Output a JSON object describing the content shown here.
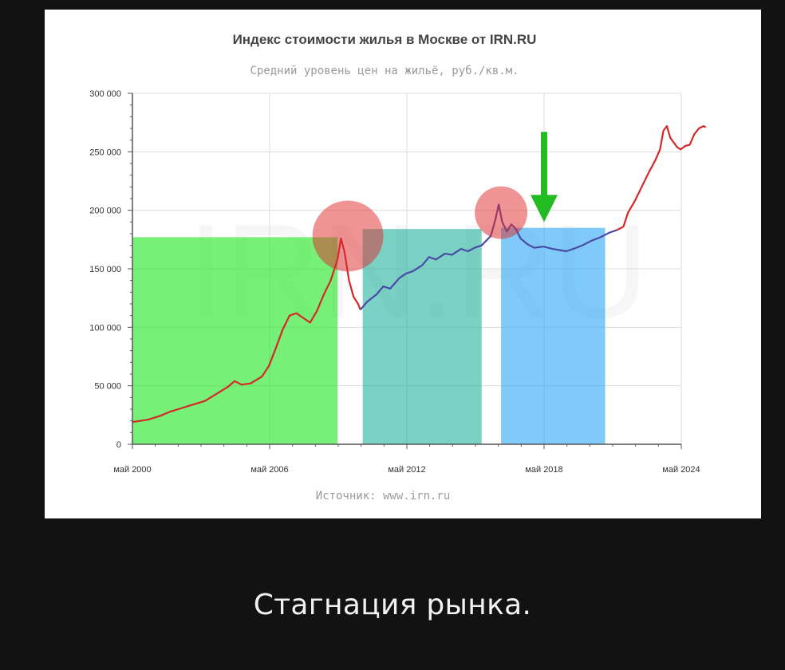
{
  "chart_data": {
    "type": "line",
    "title": "Индекс стоимости жилья в Москве от IRN.RU",
    "subtitle": "Средний уровень цен на жильё, руб./кв.м.",
    "source": "Источник: www.irn.ru",
    "watermark": "IRN.RU",
    "xlim": [
      2000.33,
      2024.33
    ],
    "ylim": [
      0,
      300000
    ],
    "x_ticks": [
      {
        "x": 2000.33,
        "label": "май 2000"
      },
      {
        "x": 2006.33,
        "label": "май 2006"
      },
      {
        "x": 2012.33,
        "label": "май 2012"
      },
      {
        "x": 2018.33,
        "label": "май 2018"
      },
      {
        "x": 2024.33,
        "label": "май 2024"
      }
    ],
    "y_ticks": [
      {
        "y": 0,
        "label": "0"
      },
      {
        "y": 50000,
        "label": "50 000"
      },
      {
        "y": 100000,
        "label": "100 000"
      },
      {
        "y": 150000,
        "label": "150 000"
      },
      {
        "y": 200000,
        "label": "200 000"
      },
      {
        "y": 250000,
        "label": "250 000"
      },
      {
        "y": 300000,
        "label": "300 000"
      }
    ],
    "grid": true,
    "series": [
      {
        "color": "#d62728",
        "points": [
          [
            2000.33,
            19000
          ],
          [
            2001.0,
            21000
          ],
          [
            2001.5,
            24000
          ],
          [
            2002.0,
            28000
          ],
          [
            2002.5,
            31000
          ],
          [
            2003.0,
            34000
          ],
          [
            2003.5,
            37000
          ],
          [
            2004.0,
            43000
          ],
          [
            2004.5,
            49000
          ],
          [
            2004.8,
            54000
          ],
          [
            2005.1,
            51000
          ],
          [
            2005.5,
            52000
          ],
          [
            2006.0,
            58000
          ],
          [
            2006.3,
            67000
          ],
          [
            2006.6,
            82000
          ],
          [
            2006.9,
            98000
          ],
          [
            2007.2,
            110000
          ],
          [
            2007.5,
            112000
          ],
          [
            2007.8,
            108000
          ],
          [
            2008.1,
            104000
          ],
          [
            2008.4,
            114000
          ],
          [
            2008.7,
            128000
          ],
          [
            2009.0,
            140000
          ],
          [
            2009.3,
            158000
          ],
          [
            2009.45,
            176000
          ],
          [
            2009.6,
            165000
          ],
          [
            2009.8,
            140000
          ],
          [
            2010.0,
            126000
          ],
          [
            2010.2,
            120000
          ],
          [
            2010.3,
            115000
          ]
        ]
      },
      {
        "color": "#4a4aa8",
        "points": [
          [
            2010.3,
            115000
          ],
          [
            2010.6,
            122000
          ],
          [
            2011.0,
            128000
          ],
          [
            2011.3,
            135000
          ],
          [
            2011.6,
            133000
          ],
          [
            2012.0,
            142000
          ],
          [
            2012.3,
            146000
          ],
          [
            2012.6,
            148000
          ],
          [
            2013.0,
            153000
          ],
          [
            2013.3,
            160000
          ],
          [
            2013.6,
            158000
          ],
          [
            2014.0,
            163000
          ],
          [
            2014.3,
            162000
          ],
          [
            2014.7,
            167000
          ],
          [
            2015.0,
            165000
          ],
          [
            2015.3,
            168000
          ],
          [
            2015.6,
            170000
          ],
          [
            2016.0,
            178000
          ],
          [
            2016.2,
            192000
          ],
          [
            2016.35,
            205000
          ],
          [
            2016.5,
            190000
          ],
          [
            2016.7,
            182000
          ],
          [
            2016.9,
            188000
          ],
          [
            2017.1,
            184000
          ],
          [
            2017.3,
            176000
          ],
          [
            2017.6,
            171000
          ],
          [
            2017.9,
            168000
          ],
          [
            2018.3,
            169000
          ],
          [
            2018.7,
            167000
          ],
          [
            2019.0,
            166000
          ],
          [
            2019.3,
            165000
          ],
          [
            2019.6,
            167000
          ],
          [
            2020.0,
            170000
          ],
          [
            2020.4,
            174000
          ],
          [
            2020.8,
            177000
          ],
          [
            2021.2,
            181000
          ],
          [
            2021.5,
            183000
          ]
        ]
      },
      {
        "color": "#d62728",
        "points": [
          [
            2021.5,
            183000
          ],
          [
            2021.8,
            186000
          ],
          [
            2022.0,
            198000
          ],
          [
            2022.3,
            208000
          ],
          [
            2022.6,
            220000
          ],
          [
            2022.9,
            232000
          ],
          [
            2023.2,
            243000
          ],
          [
            2023.4,
            252000
          ],
          [
            2023.55,
            268000
          ],
          [
            2023.7,
            272000
          ],
          [
            2023.85,
            262000
          ],
          [
            2024.0,
            258000
          ],
          [
            2024.15,
            254000
          ],
          [
            2024.3,
            252000
          ],
          [
            2024.5,
            255000
          ],
          [
            2024.7,
            256000
          ],
          [
            2024.9,
            265000
          ],
          [
            2025.1,
            270000
          ],
          [
            2025.3,
            272000
          ],
          [
            2025.4,
            271000
          ]
        ]
      }
    ],
    "overlays": {
      "bands": [
        {
          "x0": 2000.33,
          "x1": 2009.3,
          "top": 177000,
          "color": "#22e622",
          "opacity": 0.62
        },
        {
          "x0": 2010.4,
          "x1": 2015.6,
          "top": 184000,
          "color": "#22b39c",
          "opacity": 0.6
        },
        {
          "x0": 2016.45,
          "x1": 2021.0,
          "top": 185000,
          "color": "#2aa6f5",
          "opacity": 0.6
        }
      ],
      "circles": [
        {
          "x": 2009.75,
          "y": 178000,
          "r_x": 1.55,
          "color": "#e0292b",
          "opacity": 0.5
        },
        {
          "x": 2016.45,
          "y": 198000,
          "r_x": 1.15,
          "color": "#e0292b",
          "opacity": 0.5
        }
      ],
      "arrow": {
        "x": 2018.33,
        "y_from": 267000,
        "y_to": 190000,
        "color": "#22bb22"
      }
    }
  },
  "caption": "Стагнация рынка."
}
